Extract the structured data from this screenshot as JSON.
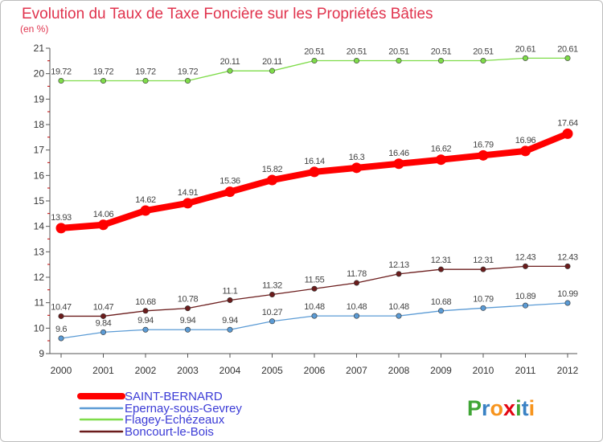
{
  "chart_data": {
    "type": "line",
    "title": "Evolution du Taux de Taxe Foncière sur les Propriétés Bâties",
    "ylabel": "(en %)",
    "xlabel": "",
    "x": [
      "2000",
      "2001",
      "2002",
      "2003",
      "2004",
      "2005",
      "2006",
      "2007",
      "2008",
      "2009",
      "2010",
      "2011",
      "2012"
    ],
    "ylim": [
      9,
      21
    ],
    "yticks": [
      9,
      10,
      11,
      12,
      13,
      14,
      15,
      16,
      17,
      18,
      19,
      20,
      21
    ],
    "grid": false,
    "legend": "bottom-left",
    "series": [
      {
        "name": "SAINT-BERNARD",
        "color": "#ff0000",
        "values": [
          13.93,
          14.06,
          14.62,
          14.91,
          15.36,
          15.82,
          16.14,
          16.3,
          16.46,
          16.62,
          16.79,
          16.96,
          17.64
        ],
        "labels": [
          "13.93",
          "14.06",
          "14.62",
          "14.91",
          "15.36",
          "15.82",
          "16.14",
          "16.3",
          "16.46",
          "16.62",
          "16.79",
          "16.96",
          "17.64"
        ]
      },
      {
        "name": "Epernay-sous-Gevrey",
        "color": "#5b9bd5",
        "values": [
          9.6,
          9.84,
          9.94,
          9.94,
          9.94,
          10.27,
          10.48,
          10.48,
          10.48,
          10.68,
          10.79,
          10.89,
          10.99
        ],
        "labels": [
          "9.6",
          "9.84",
          "9.94",
          "9.94",
          "9.94",
          "10.27",
          "10.48",
          "10.48",
          "10.48",
          "10.68",
          "10.79",
          "10.89",
          "10.99"
        ]
      },
      {
        "name": "Flagey-Echézeaux",
        "color": "#7fdc4a",
        "values": [
          19.72,
          19.72,
          19.72,
          19.72,
          20.11,
          20.11,
          20.51,
          20.51,
          20.51,
          20.51,
          20.51,
          20.61,
          20.61
        ],
        "labels": [
          "19.72",
          "19.72",
          "19.72",
          "19.72",
          "20.11",
          "20.11",
          "20.51",
          "20.51",
          "20.51",
          "20.51",
          "20.51",
          "20.61",
          "20.61"
        ]
      },
      {
        "name": "Boncourt-le-Bois",
        "color": "#6b1c1c",
        "values": [
          10.47,
          10.47,
          10.68,
          10.78,
          11.1,
          11.32,
          11.55,
          11.78,
          12.13,
          12.31,
          12.31,
          12.43,
          12.43
        ],
        "labels": [
          "10.47",
          "10.47",
          "10.68",
          "10.78",
          "11.1",
          "11.32",
          "11.55",
          "11.78",
          "12.13",
          "12.31",
          "12.31",
          "12.43",
          "12.43"
        ]
      }
    ]
  },
  "logo": {
    "text": "Proxiti",
    "letter_colors": [
      "#3fa535",
      "#3a82c4",
      "#f7941d",
      "#e30613",
      "#3fa535",
      "#3a82c4",
      "#f7941d"
    ]
  }
}
